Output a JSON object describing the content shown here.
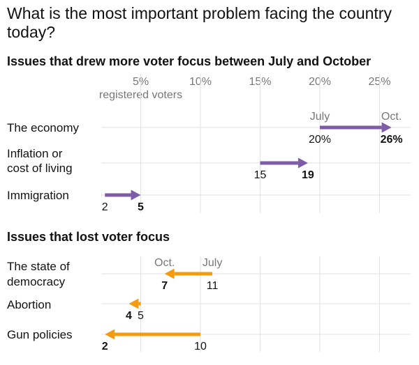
{
  "title": "What is the most important problem facing the country today?",
  "colors": {
    "increase": "#7d5ba6",
    "decrease": "#f39c12",
    "grid": "#e2e2e2",
    "muted": "#777777",
    "text": "#121212"
  },
  "chart_data": {
    "type": "arrow-dot",
    "x_axis": {
      "ticks": [
        5,
        10,
        15,
        20,
        25
      ],
      "tick_labels": [
        "5%",
        "10%",
        "15%",
        "20%",
        "25%"
      ],
      "unit_note": "registered voters",
      "xlim": [
        0,
        27.5
      ]
    },
    "panels": [
      {
        "title": "Issues that drew more voter focus between July and October",
        "direction": "increase",
        "header_labels": {
          "from": "July",
          "to": "Oct."
        },
        "items": [
          {
            "label": "The economy",
            "july": 20,
            "october": 26,
            "july_label": "20%",
            "october_label": "26%"
          },
          {
            "label": "Inflation or cost of living",
            "july": 15,
            "october": 19,
            "july_label": "15",
            "october_label": "19"
          },
          {
            "label": "Immigration",
            "july": 2,
            "october": 5,
            "july_label": "2",
            "october_label": "5"
          }
        ]
      },
      {
        "title": "Issues that lost voter focus",
        "direction": "decrease",
        "header_labels": {
          "from": "July",
          "to": "Oct."
        },
        "items": [
          {
            "label": "The state of democracy",
            "july": 11,
            "october": 7,
            "july_label": "11",
            "october_label": "7"
          },
          {
            "label": "Abortion",
            "july": 5,
            "october": 4,
            "july_label": "5",
            "october_label": "4"
          },
          {
            "label": "Gun policies",
            "july": 10,
            "october": 2,
            "july_label": "10",
            "october_label": "2"
          }
        ]
      }
    ]
  }
}
